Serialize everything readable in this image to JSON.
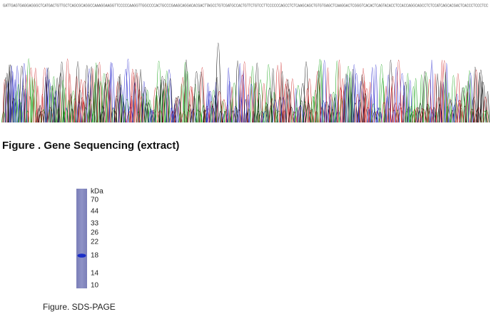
{
  "sequence": {
    "text": "GATTGAGTGAGGAGGGCTCATGACTGTTGCTCAGCGCAGGCCAAAGGAAGGTTCCCCCAAGGTTGGCCCCACTGCCCGAAGCAGGACACGACTTAGCCTGTCGATGCCACTGTTCTGTCCTTCCCCCCAGCCTCTCAAGCAGCTGTGTGAGCTCAAGGACTCGGGTCACACTCAGTACACCTCCACCAGGCAGCCTCTCCATCAGCACGACTCACCCTCCCTCC"
  },
  "figure1": {
    "caption": "Figure . Gene Sequencing (extract)"
  },
  "figure2": {
    "caption": "Figure. SDS-PAGE",
    "unit": "kDa",
    "markers": [
      "70",
      "44",
      "33",
      "26",
      "22",
      "18",
      "14",
      "10"
    ]
  }
}
